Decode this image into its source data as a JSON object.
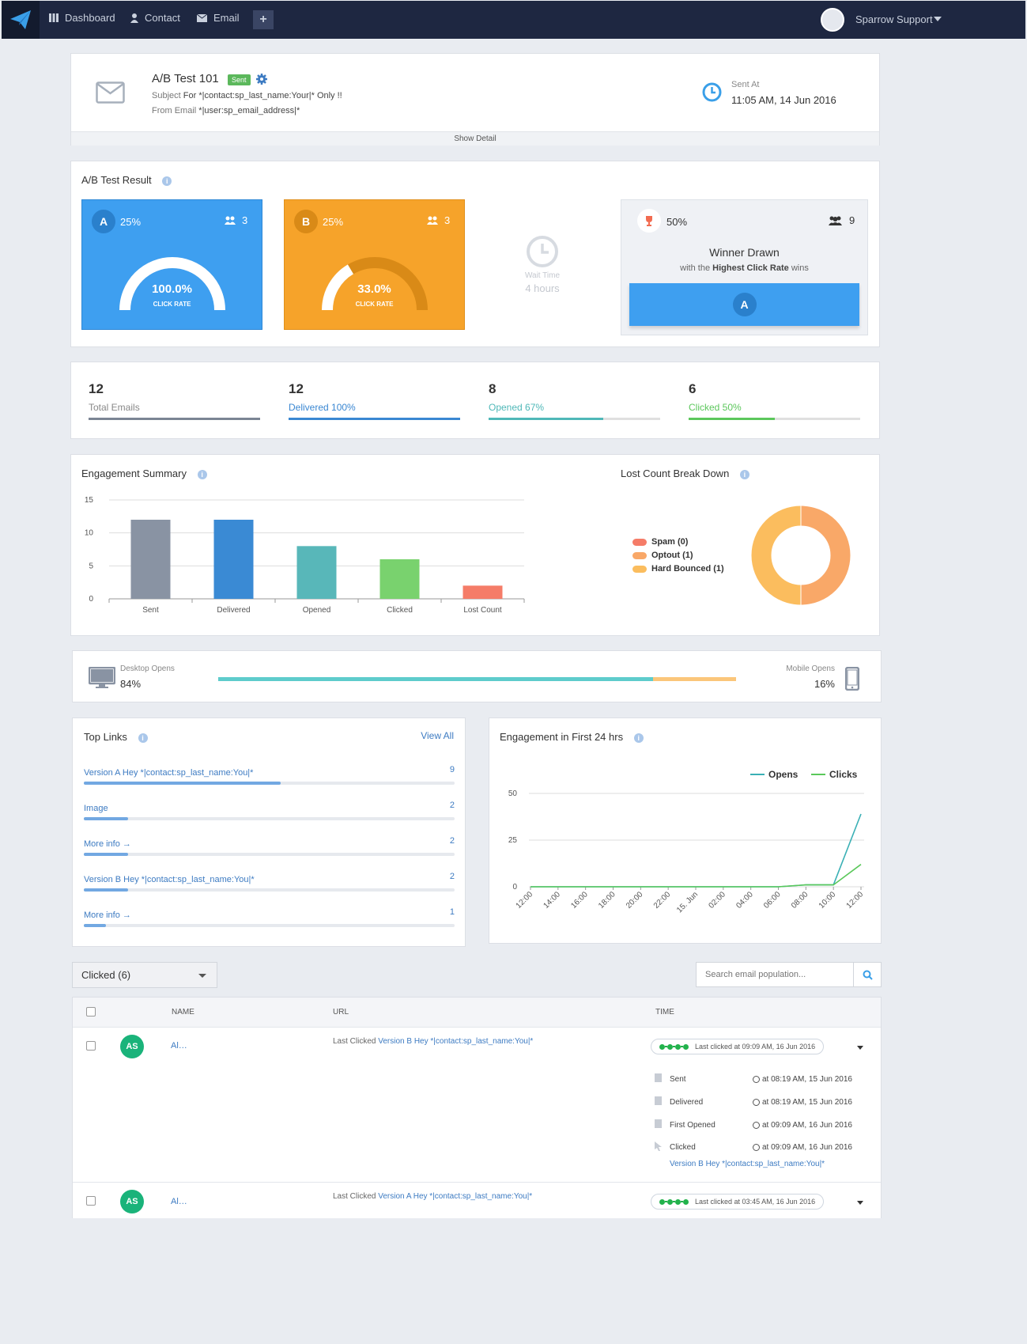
{
  "nav": {
    "items": [
      {
        "label": "Dashboard",
        "icon": "grid-icon"
      },
      {
        "label": "Contact",
        "icon": "user-icon"
      },
      {
        "label": "Email",
        "icon": "envelope-icon"
      }
    ],
    "add_icon": "plus-icon",
    "user_name": "Sparrow Support"
  },
  "campaign": {
    "title": "A/B Test 101",
    "status": "Sent",
    "subject_label": "Subject",
    "subject": "For *|contact:sp_last_name:Your|* Only !!",
    "from_label": "From Email",
    "from": "*|user:sp_email_address|*",
    "sent_at_label": "Sent At",
    "sent_at": "11:05 AM, 14 Jun 2016",
    "show_detail": "Show Detail"
  },
  "ab_result": {
    "title": "A/B Test Result",
    "variant_a": {
      "letter": "A",
      "percent": "25%",
      "users": "3",
      "rate": "100.0%",
      "rate_value": 100,
      "rate_label": "CLICK RATE",
      "color": "#3e9ff0"
    },
    "variant_b": {
      "letter": "B",
      "percent": "25%",
      "users": "3",
      "rate": "33.0%",
      "rate_value": 33,
      "rate_label": "CLICK RATE",
      "color": "#f6a32a"
    },
    "wait_label": "Wait Time",
    "wait_value": "4 hours",
    "winner": {
      "percent": "50%",
      "users": "9",
      "title": "Winner Drawn",
      "subtitle_pre": "with the",
      "subtitle_bold": "Highest Click Rate",
      "subtitle_post": "wins",
      "letter": "A"
    }
  },
  "stats": [
    {
      "value": "12",
      "label": "Total Emails",
      "fill": 1.0,
      "color": "#7b8594"
    },
    {
      "value": "12",
      "label": "Delivered 100%",
      "fill": 1.0,
      "color": "#3a87d2"
    },
    {
      "value": "8",
      "label": "Opened 67%",
      "fill": 0.67,
      "color": "#4fb8b8"
    },
    {
      "value": "6",
      "label": "Clicked 50%",
      "fill": 0.5,
      "color": "#5cc75c"
    }
  ],
  "engagement": {
    "title": "Engagement Summary",
    "chart_data": {
      "type": "bar",
      "categories": [
        "Sent",
        "Delivered",
        "Opened",
        "Clicked",
        "Lost Count"
      ],
      "values": [
        12,
        12,
        8,
        6,
        2
      ],
      "colors": [
        "#8993a3",
        "#3a8ad4",
        "#58b7b9",
        "#79d26e",
        "#f57c68"
      ],
      "ylim": [
        0,
        15
      ],
      "yticks": [
        "15",
        "10",
        "5",
        "0"
      ],
      "grid": true
    }
  },
  "lost": {
    "title": "Lost Count Break Down",
    "chart_data": {
      "type": "pie",
      "labels": [
        "Spam (0)",
        "Optout (1)",
        "Hard Bounced (1)"
      ],
      "values": [
        0,
        1,
        1
      ],
      "colors": [
        "#f57c68",
        "#f9a868",
        "#fbbd5e"
      ]
    }
  },
  "device": {
    "desktop_label": "Desktop Opens",
    "desktop_value": "84%",
    "desktop_fraction": 0.84,
    "mobile_label": "Mobile Opens",
    "mobile_value": "16%",
    "desktop_color": "#5ecccc",
    "mobile_color": "#fbc67a"
  },
  "top_links": {
    "title": "Top Links",
    "view_all": "View All",
    "items": [
      {
        "label": "Version A Hey *|contact:sp_last_name:You|*",
        "count": "9",
        "fraction": 0.53
      },
      {
        "label": "Image",
        "count": "2",
        "fraction": 0.12
      },
      {
        "label": "More info →",
        "count": "2",
        "fraction": 0.12
      },
      {
        "label": "Version B Hey *|contact:sp_last_name:You|*",
        "count": "2",
        "fraction": 0.12
      },
      {
        "label": "More info →",
        "count": "1",
        "fraction": 0.06
      }
    ]
  },
  "engagement24": {
    "title": "Engagement in First 24 hrs",
    "chart_data": {
      "type": "line",
      "x": [
        "12:00",
        "14:00",
        "16:00",
        "18:00",
        "20:00",
        "22:00",
        "15. Jun",
        "02:00",
        "04:00",
        "06:00",
        "08:00",
        "10:00",
        "12:00"
      ],
      "ylim": [
        0,
        50
      ],
      "yticks": [
        "50",
        "25",
        "0"
      ],
      "series": [
        {
          "name": "Opens",
          "color": "#3ab0b5",
          "values": [
            0,
            0,
            0,
            0,
            0,
            0,
            0,
            0,
            0,
            0,
            1,
            1,
            39
          ]
        },
        {
          "name": "Clicks",
          "color": "#5ac85a",
          "values": [
            0,
            0,
            0,
            0,
            0,
            0,
            0,
            0,
            0,
            0,
            1,
            1,
            12
          ]
        }
      ]
    }
  },
  "filter": {
    "selected": "Clicked (6)",
    "search_placeholder": "Search email population..."
  },
  "table": {
    "headers": {
      "name": "NAME",
      "url": "URL",
      "time": "TIME"
    },
    "rows": [
      {
        "initials": "AS",
        "name": "Al…",
        "url_prefix": "Last Clicked",
        "url_link": "Version B Hey *|contact:sp_last_name:You|*",
        "time_label": "Last clicked",
        "time_value": "at 09:09 AM, 16 Jun 2016",
        "events": [
          {
            "label": "Sent",
            "time": "at 08:19 AM, 15 Jun 2016"
          },
          {
            "label": "Delivered",
            "time": "at 08:19 AM, 15 Jun 2016"
          },
          {
            "label": "First Opened",
            "time": "at 09:09 AM, 16 Jun 2016"
          },
          {
            "label": "Clicked",
            "time": "at 09:09 AM, 16 Jun 2016"
          }
        ],
        "clicked_link": "Version B Hey *|contact:sp_last_name:You|*"
      },
      {
        "initials": "AS",
        "name": "Al…",
        "url_prefix": "Last Clicked",
        "url_link": "Version A Hey *|contact:sp_last_name:You|*",
        "time_label": "Last clicked",
        "time_value": "at 03:45 AM, 16 Jun 2016"
      }
    ]
  }
}
